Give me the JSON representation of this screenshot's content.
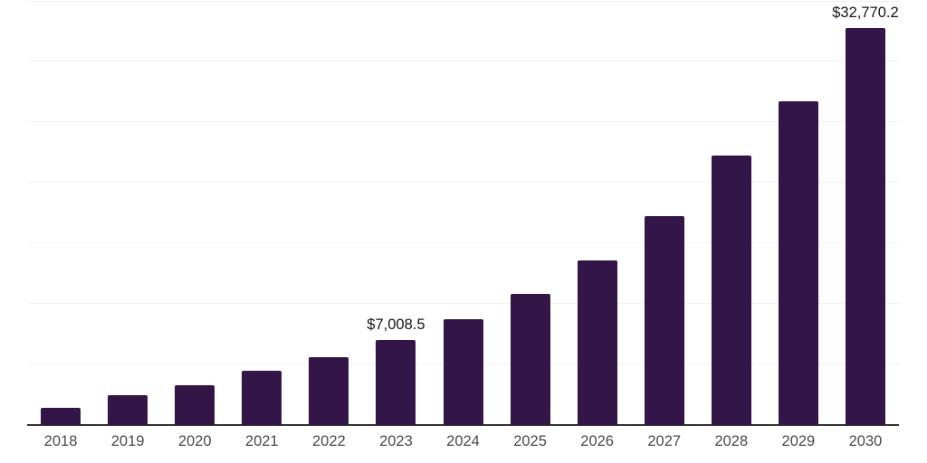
{
  "chart_data": {
    "type": "bar",
    "title": "",
    "xlabel": "",
    "ylabel": "",
    "categories": [
      "2018",
      "2019",
      "2020",
      "2021",
      "2022",
      "2023",
      "2024",
      "2025",
      "2026",
      "2027",
      "2028",
      "2029",
      "2030"
    ],
    "values": [
      1400,
      2450,
      3300,
      4450,
      5600,
      7008.5,
      8750,
      10800,
      13600,
      17250,
      22250,
      26750,
      32770.2
    ],
    "annotations": [
      {
        "category": "2023",
        "label": "$7,008.5"
      },
      {
        "category": "2030",
        "label": "$32,770.2"
      }
    ],
    "ylim": [
      0,
      35000
    ],
    "gridline_step": 5000,
    "grid": true,
    "legend": "none",
    "colors": {
      "bar": "#331547",
      "axis_line": "#333333",
      "gridline": "#f1f1f1",
      "tick_label": "#4a4a4a",
      "value_label": "#141414",
      "background": "#ffffff"
    }
  }
}
